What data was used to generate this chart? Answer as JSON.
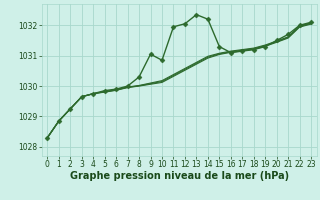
{
  "bg_color": "#cff0e8",
  "grid_color": "#a8d8cc",
  "line_color": "#2d6a2d",
  "marker_color": "#2d6a2d",
  "title": "Graphe pression niveau de la mer (hPa)",
  "title_color": "#1a4a1a",
  "title_fontsize": 7.0,
  "tick_fontsize": 5.5,
  "xlim": [
    -0.5,
    23.5
  ],
  "ylim": [
    1027.7,
    1032.7
  ],
  "yticks": [
    1028,
    1029,
    1030,
    1031,
    1032
  ],
  "xticks": [
    0,
    1,
    2,
    3,
    4,
    5,
    6,
    7,
    8,
    9,
    10,
    11,
    12,
    13,
    14,
    15,
    16,
    17,
    18,
    19,
    20,
    21,
    22,
    23
  ],
  "series": [
    {
      "x": [
        0,
        1,
        2,
        3,
        4,
        5,
        6,
        7,
        8,
        9,
        10,
        11,
        12,
        13,
        14,
        15,
        16,
        17,
        18,
        19,
        20,
        21,
        22,
        23
      ],
      "y": [
        1028.3,
        1028.85,
        1029.25,
        1029.65,
        1029.75,
        1029.85,
        1029.9,
        1030.0,
        1030.3,
        1031.05,
        1030.85,
        1031.95,
        1032.05,
        1032.35,
        1032.2,
        1031.3,
        1031.1,
        1031.15,
        1031.2,
        1031.3,
        1031.5,
        1031.7,
        1032.0,
        1032.1
      ],
      "marker": "D",
      "markersize": 2.5,
      "linewidth": 1.0
    },
    {
      "x": [
        0,
        1,
        2,
        3,
        4,
        5,
        6,
        7,
        8,
        9,
        10,
        11,
        12,
        13,
        14,
        15,
        16,
        17,
        18,
        19,
        20,
        21,
        22,
        23
      ],
      "y": [
        1028.3,
        1028.85,
        1029.25,
        1029.65,
        1029.75,
        1029.82,
        1029.88,
        1029.97,
        1030.02,
        1030.1,
        1030.18,
        1030.38,
        1030.58,
        1030.78,
        1030.98,
        1031.08,
        1031.15,
        1031.2,
        1031.25,
        1031.35,
        1031.48,
        1031.62,
        1031.98,
        1032.08
      ],
      "marker": null,
      "markersize": 0,
      "linewidth": 0.8
    },
    {
      "x": [
        0,
        1,
        2,
        3,
        4,
        5,
        6,
        7,
        8,
        9,
        10,
        11,
        12,
        13,
        14,
        15,
        16,
        17,
        18,
        19,
        20,
        21,
        22,
        23
      ],
      "y": [
        1028.3,
        1028.85,
        1029.25,
        1029.65,
        1029.75,
        1029.81,
        1029.87,
        1029.96,
        1030.01,
        1030.08,
        1030.15,
        1030.35,
        1030.55,
        1030.75,
        1030.95,
        1031.06,
        1031.13,
        1031.18,
        1031.23,
        1031.33,
        1031.46,
        1031.6,
        1031.96,
        1032.06
      ],
      "marker": null,
      "markersize": 0,
      "linewidth": 0.8
    },
    {
      "x": [
        0,
        1,
        2,
        3,
        4,
        5,
        6,
        7,
        8,
        9,
        10,
        11,
        12,
        13,
        14,
        15,
        16,
        17,
        18,
        19,
        20,
        21,
        22,
        23
      ],
      "y": [
        1028.3,
        1028.85,
        1029.25,
        1029.65,
        1029.75,
        1029.8,
        1029.86,
        1029.95,
        1030.0,
        1030.06,
        1030.12,
        1030.32,
        1030.52,
        1030.72,
        1030.92,
        1031.04,
        1031.11,
        1031.16,
        1031.21,
        1031.31,
        1031.44,
        1031.58,
        1031.94,
        1032.04
      ],
      "marker": null,
      "markersize": 0,
      "linewidth": 0.8
    }
  ]
}
